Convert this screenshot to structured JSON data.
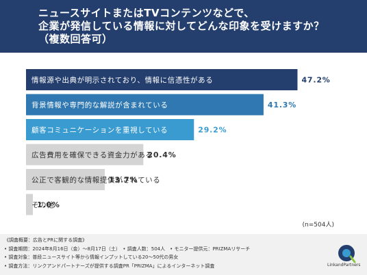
{
  "title": {
    "line1": "ニュースサイトまたはTVコンテンツなどで、",
    "line2": "企業が発信している情報に対してどんな印象を受けますか？",
    "line3": "（複数回答可）"
  },
  "chart_data": {
    "type": "bar",
    "orientation": "horizontal",
    "xlim": [
      0,
      50
    ],
    "categories": [
      "情報源や出典が明示されており、情報に信憑性がある",
      "背景情報や専門的な解説が含まれている",
      "顧客コミュニケーションを重視している",
      "広告費用を確保できる資金力がある",
      "公正で客観的な情報提供がされている",
      "その他"
    ],
    "values": [
      47.2,
      41.3,
      29.2,
      20.4,
      13.7,
      1.0
    ],
    "value_labels": [
      "47.2%",
      "41.3%",
      "29.2%",
      "20.4%",
      "13.7%",
      "1.0%"
    ],
    "colors": [
      "#243f6e",
      "#2f78b1",
      "#3a9bd1",
      "#d4d4d4",
      "#d4d4d4",
      "#d4d4d4"
    ],
    "label_colors": [
      "#ffffff",
      "#ffffff",
      "#ffffff",
      "#333333",
      "#333333",
      "#333333"
    ],
    "value_colors": [
      "#243f6e",
      "#2f78b1",
      "#3a9bd1",
      "#333333",
      "#333333",
      "#333333"
    ],
    "n_label": "(n=504人)"
  },
  "footer": {
    "line1": "《調査概要：広告とPRに関する調査》",
    "line2": "• 調査期間：2024年8月16日（金）〜8月17日（土）　• 調査人数：504人　• モニター提供元：PRIZMAリサーチ",
    "line3": "• 調査対象：普段ニュースサイト等から情報インプットしている20〜50代の男女",
    "line4": "• 調査方法：リンクアンドパートナーズが提供する調査PR「PRIZMA」によるインターネット調査"
  },
  "logo": {
    "name": "LinkandPartners"
  }
}
